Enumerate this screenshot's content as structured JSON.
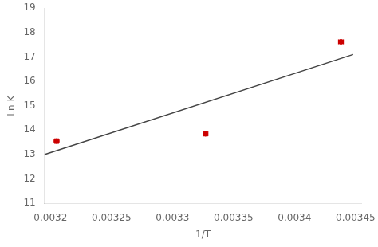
{
  "chart_data": {
    "type": "scatter",
    "xlabel": "1/T",
    "ylabel": "Ln K",
    "series": [
      {
        "type": "line",
        "color": "#444444",
        "x": [
          0.003195,
          0.003448
        ],
        "values": [
          13.0,
          17.1
        ]
      },
      {
        "type": "scatter",
        "marker": "circle",
        "color": "#cc0000",
        "x": [
          0.003205,
          0.003327,
          0.003438
        ],
        "values": [
          13.55,
          13.85,
          17.62
        ],
        "y_err": [
          0.09,
          0.09,
          0.07
        ],
        "x_err": [
          2e-06,
          2e-06,
          2e-06
        ]
      }
    ],
    "xlim": [
      0.003195,
      0.003455
    ],
    "xticks": [
      0.0032,
      0.00325,
      0.0033,
      0.00335,
      0.0034,
      0.00345
    ],
    "ylim": [
      11,
      19
    ],
    "yticks": [
      11,
      12,
      13,
      14,
      15,
      16,
      17,
      18,
      19
    ],
    "grid": false
  }
}
